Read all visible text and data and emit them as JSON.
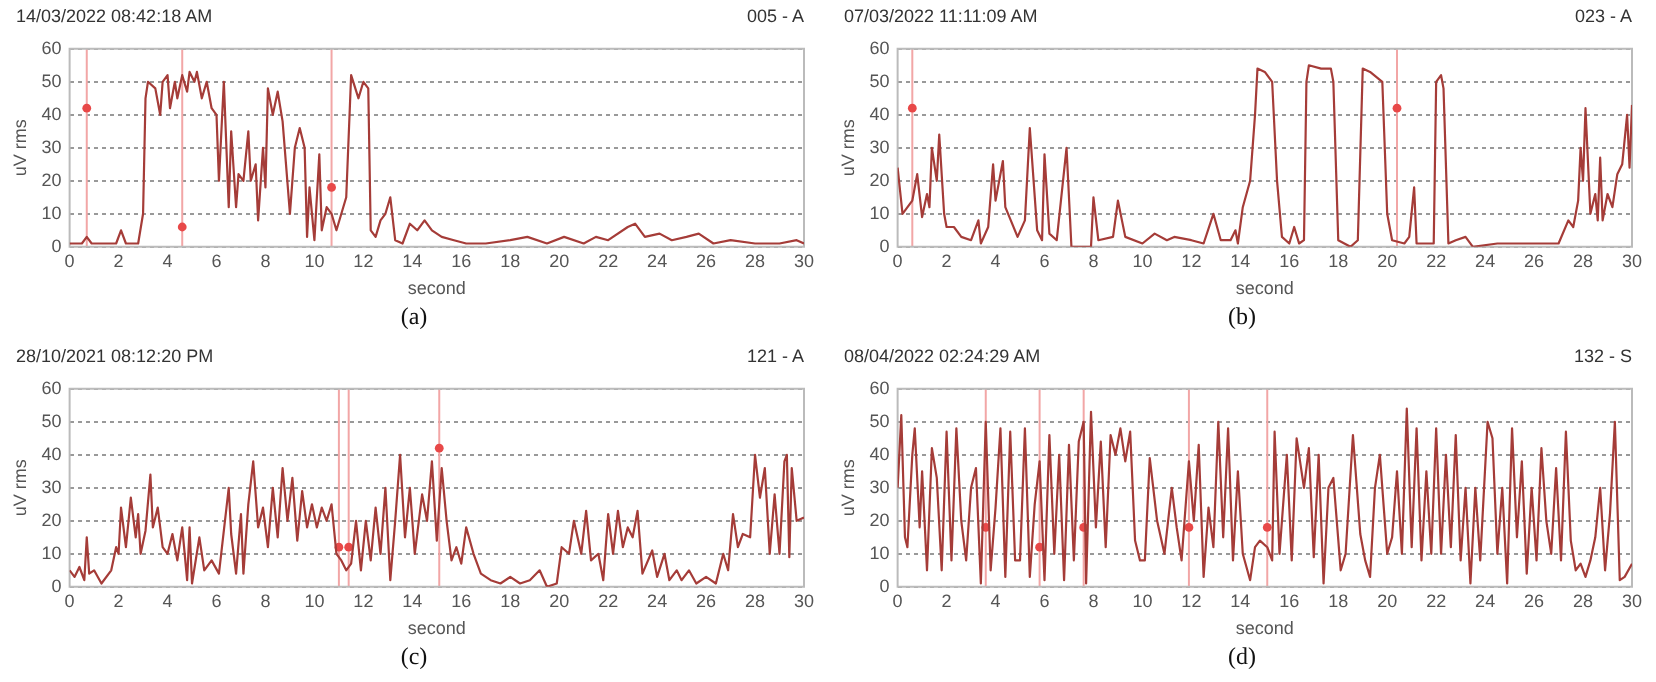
{
  "chart_data": [
    {
      "type": "line",
      "title": "14/03/2022 08:42:18 AM",
      "subtitle": "005 - A",
      "xlabel": "second",
      "ylabel": "uV rms",
      "annotations": [
        "(a)"
      ],
      "xlim": [
        0,
        30
      ],
      "ylim": [
        0,
        60
      ],
      "xticks": [
        0,
        2,
        4,
        6,
        8,
        10,
        12,
        14,
        16,
        18,
        20,
        22,
        24,
        26,
        28,
        30
      ],
      "yticks": [
        0,
        10,
        20,
        30,
        40,
        50,
        60
      ],
      "grid": "y",
      "legend": false,
      "line_style": "solid",
      "series": [
        {
          "type": "line",
          "color": "#a53c38",
          "marker": "none",
          "x": [
            0,
            0.5,
            0.7,
            0.9,
            1.5,
            1.9,
            2.1,
            2.3,
            2.8,
            3.0,
            3.1,
            3.2,
            3.5,
            3.7,
            3.8,
            4.0,
            4.1,
            4.3,
            4.4,
            4.6,
            4.8,
            4.9,
            5.1,
            5.2,
            5.4,
            5.6,
            5.8,
            6.0,
            6.1,
            6.3,
            6.5,
            6.6,
            6.8,
            6.9,
            7.1,
            7.3,
            7.4,
            7.6,
            7.7,
            7.9,
            8.0,
            8.1,
            8.3,
            8.5,
            8.7,
            9.0,
            9.2,
            9.4,
            9.6,
            9.7,
            9.8,
            9.9,
            10.0,
            10.2,
            10.3,
            10.5,
            10.7,
            10.9,
            11.1,
            11.3,
            11.5,
            11.8,
            12.0,
            12.2,
            12.3,
            12.5,
            12.7,
            12.9,
            13.1,
            13.3,
            13.6,
            13.9,
            14.2,
            14.5,
            14.8,
            15.2,
            15.7,
            16.2,
            17,
            18,
            18.7,
            19.5,
            20.2,
            21,
            21.5,
            22,
            22.8,
            23.1,
            23.5,
            24.1,
            24.6,
            25.2,
            25.7,
            26.3,
            27,
            28,
            29,
            29.7,
            30
          ],
          "values": [
            1,
            1,
            3,
            1,
            1,
            1,
            5,
            1,
            1,
            10,
            45,
            50,
            48,
            40,
            50,
            52,
            42,
            50,
            45,
            52,
            47,
            53,
            50,
            53,
            45,
            50,
            42,
            40,
            20,
            50,
            12,
            35,
            12,
            22,
            20,
            35,
            20,
            25,
            8,
            30,
            18,
            48,
            40,
            47,
            38,
            10,
            30,
            36,
            30,
            3,
            18,
            10,
            2,
            28,
            5,
            12,
            10,
            5,
            10,
            15,
            52,
            45,
            50,
            48,
            5,
            3,
            8,
            10,
            15,
            2,
            1,
            7,
            5,
            8,
            5,
            3,
            2,
            1,
            1,
            2,
            3,
            1,
            3,
            1,
            3,
            2,
            6,
            7,
            3,
            4,
            2,
            3,
            4,
            1,
            2,
            1,
            1,
            2,
            1
          ]
        },
        {
          "type": "scatter",
          "color": "#e84848",
          "marker": "circle",
          "x": [
            0.7,
            4.6,
            10.7
          ],
          "values": [
            42,
            6,
            18
          ]
        }
      ],
      "ref_lines": [
        {
          "axis": "x",
          "value": 0.7,
          "color": "#f2a6a6"
        },
        {
          "axis": "x",
          "value": 4.6,
          "color": "#f2a6a6"
        },
        {
          "axis": "x",
          "value": 10.7,
          "color": "#f2a6a6"
        }
      ]
    },
    {
      "type": "line",
      "title": "07/03/2022 11:11:09 AM",
      "subtitle": "023 - A",
      "xlabel": "second",
      "ylabel": "uV rms",
      "annotations": [
        "(b)"
      ],
      "xlim": [
        0,
        30
      ],
      "ylim": [
        0,
        60
      ],
      "xticks": [
        0,
        2,
        4,
        6,
        8,
        10,
        12,
        14,
        16,
        18,
        20,
        22,
        24,
        26,
        28,
        30
      ],
      "yticks": [
        0,
        10,
        20,
        30,
        40,
        50,
        60
      ],
      "grid": "y",
      "legend": false,
      "line_style": "solid",
      "series": [
        {
          "type": "line",
          "color": "#a53c38",
          "marker": "none",
          "x": [
            0,
            0.2,
            0.6,
            0.8,
            1.0,
            1.2,
            1.3,
            1.4,
            1.6,
            1.7,
            1.9,
            2.0,
            2.3,
            2.6,
            3.0,
            3.3,
            3.4,
            3.7,
            3.9,
            4.0,
            4.3,
            4.4,
            4.9,
            5.2,
            5.4,
            5.7,
            5.9,
            6.0,
            6.2,
            6.5,
            6.9,
            7.1,
            7.9,
            8.0,
            8.2,
            8.8,
            9.0,
            9.3,
            10.0,
            10.5,
            11.0,
            11.3,
            12.0,
            12.5,
            12.9,
            13.2,
            13.6,
            13.8,
            13.9,
            14.1,
            14.4,
            14.6,
            14.7,
            15.0,
            15.3,
            15.5,
            15.7,
            16.0,
            16.2,
            16.4,
            16.6,
            16.7,
            16.8,
            17.3,
            17.7,
            17.8,
            18.0,
            18.5,
            18.8,
            19.0,
            19.3,
            19.8,
            20.0,
            20.2,
            20.7,
            20.9,
            21.1,
            21.2,
            21.9,
            22.0,
            22.2,
            22.3,
            22.5,
            22.8,
            23.2,
            23.5,
            24.5,
            25.5,
            26.5,
            27.0,
            27.4,
            27.6,
            27.8,
            27.9,
            28.0,
            28.1,
            28.3,
            28.5,
            28.6,
            28.7,
            28.8,
            29.0,
            29.2,
            29.4,
            29.6,
            29.8,
            29.9,
            30
          ],
          "values": [
            24,
            10,
            14,
            22,
            9,
            16,
            12,
            30,
            20,
            34,
            10,
            6,
            6,
            3,
            2,
            8,
            1,
            6,
            25,
            14,
            26,
            12,
            3,
            8,
            36,
            5,
            2,
            28,
            4,
            2,
            30,
            0,
            0,
            15,
            2,
            3,
            14,
            3,
            1,
            4,
            2,
            3,
            2,
            1,
            10,
            2,
            2,
            5,
            1,
            12,
            20,
            40,
            54,
            53,
            50,
            20,
            3,
            1,
            6,
            1,
            2,
            50,
            55,
            54,
            54,
            50,
            2,
            0,
            2,
            54,
            53,
            50,
            10,
            2,
            1,
            3,
            18,
            1,
            1,
            50,
            52,
            48,
            1,
            2,
            3,
            0,
            1,
            1,
            1,
            1,
            8,
            6,
            14,
            30,
            20,
            42,
            10,
            16,
            8,
            27,
            8,
            16,
            12,
            22,
            25,
            40,
            24,
            43
          ]
        },
        {
          "type": "scatter",
          "color": "#e84848",
          "marker": "circle",
          "x": [
            0.6,
            20.4
          ],
          "values": [
            42,
            42
          ]
        }
      ],
      "ref_lines": [
        {
          "axis": "x",
          "value": 0.6,
          "color": "#f2a6a6"
        },
        {
          "axis": "x",
          "value": 20.4,
          "color": "#f2a6a6"
        }
      ]
    },
    {
      "type": "line",
      "title": "28/10/2021 08:12:20 PM",
      "subtitle": "121 - A",
      "xlabel": "second",
      "ylabel": "uV rms",
      "annotations": [
        "(c)"
      ],
      "xlim": [
        0,
        30
      ],
      "ylim": [
        0,
        60
      ],
      "xticks": [
        0,
        2,
        4,
        6,
        8,
        10,
        12,
        14,
        16,
        18,
        20,
        22,
        24,
        26,
        28,
        30
      ],
      "yticks": [
        0,
        10,
        20,
        30,
        40,
        50,
        60
      ],
      "grid": "y",
      "legend": false,
      "line_style": "solid",
      "series": [
        {
          "type": "line",
          "color": "#a53c38",
          "marker": "none",
          "x": [
            0,
            0.2,
            0.4,
            0.6,
            0.7,
            0.8,
            1.0,
            1.3,
            1.7,
            1.9,
            2.0,
            2.1,
            2.3,
            2.5,
            2.7,
            2.8,
            2.9,
            3.1,
            3.3,
            3.4,
            3.6,
            3.8,
            4.0,
            4.2,
            4.4,
            4.6,
            4.8,
            4.9,
            5.0,
            5.3,
            5.5,
            5.8,
            6.1,
            6.3,
            6.5,
            6.6,
            6.8,
            7.0,
            7.1,
            7.3,
            7.5,
            7.7,
            7.9,
            8.1,
            8.3,
            8.5,
            8.7,
            8.9,
            9.1,
            9.3,
            9.5,
            9.7,
            9.9,
            10.1,
            10.3,
            10.5,
            10.7,
            10.9,
            11.1,
            11.3,
            11.5,
            11.7,
            11.9,
            12.1,
            12.3,
            12.5,
            12.7,
            12.9,
            13.1,
            13.3,
            13.5,
            13.7,
            13.9,
            14.1,
            14.4,
            14.6,
            14.8,
            15.0,
            15.2,
            15.4,
            15.6,
            15.8,
            16.0,
            16.2,
            16.5,
            16.8,
            17.2,
            17.6,
            18.0,
            18.4,
            18.8,
            19.2,
            19.5,
            19.9,
            20.1,
            20.4,
            20.6,
            20.9,
            21.1,
            21.3,
            21.6,
            21.8,
            22.0,
            22.2,
            22.4,
            22.6,
            22.8,
            23.0,
            23.2,
            23.4,
            23.8,
            24.0,
            24.3,
            24.5,
            24.8,
            25.0,
            25.3,
            25.6,
            26.0,
            26.4,
            26.7,
            26.9,
            27.1,
            27.3,
            27.5,
            27.8,
            28.0,
            28.2,
            28.4,
            28.6,
            28.8,
            29.0,
            29.2,
            29.3,
            29.4,
            29.5,
            29.7,
            30
          ],
          "values": [
            5,
            3,
            6,
            2,
            15,
            4,
            5,
            1,
            5,
            12,
            10,
            24,
            12,
            27,
            15,
            22,
            10,
            17,
            34,
            18,
            24,
            12,
            10,
            16,
            8,
            18,
            2,
            18,
            1,
            15,
            5,
            8,
            4,
            17,
            30,
            16,
            4,
            22,
            4,
            25,
            38,
            18,
            24,
            12,
            30,
            15,
            36,
            20,
            33,
            14,
            29,
            18,
            25,
            18,
            24,
            20,
            25,
            10,
            8,
            5,
            7,
            20,
            5,
            20,
            8,
            24,
            10,
            30,
            2,
            20,
            40,
            15,
            30,
            10,
            28,
            20,
            38,
            14,
            36,
            20,
            8,
            12,
            7,
            18,
            10,
            4,
            2,
            1,
            3,
            1,
            2,
            5,
            0,
            1,
            12,
            10,
            20,
            10,
            23,
            8,
            10,
            2,
            22,
            10,
            23,
            12,
            18,
            15,
            23,
            4,
            11,
            3,
            10,
            2,
            5,
            2,
            5,
            1,
            3,
            1,
            10,
            5,
            22,
            12,
            16,
            15,
            40,
            27,
            36,
            10,
            28,
            10,
            38,
            40,
            9,
            36,
            20,
            21
          ]
        },
        {
          "type": "scatter",
          "color": "#e84848",
          "marker": "circle",
          "x": [
            11,
            11.4,
            15.1
          ],
          "values": [
            12,
            12,
            42
          ]
        }
      ],
      "ref_lines": [
        {
          "axis": "x",
          "value": 11,
          "color": "#f2a6a6"
        },
        {
          "axis": "x",
          "value": 11.4,
          "color": "#f2a6a6"
        },
        {
          "axis": "x",
          "value": 15.1,
          "color": "#f2a6a6"
        }
      ]
    },
    {
      "type": "line",
      "title": "08/04/2022 02:24:29 AM",
      "subtitle": "132 - S",
      "xlabel": "second",
      "ylabel": "uV rms",
      "annotations": [
        "(d)"
      ],
      "xlim": [
        0,
        30
      ],
      "ylim": [
        0,
        60
      ],
      "xticks": [
        0,
        2,
        4,
        6,
        8,
        10,
        12,
        14,
        16,
        18,
        20,
        22,
        24,
        26,
        28,
        30
      ],
      "yticks": [
        0,
        10,
        20,
        30,
        40,
        50,
        60
      ],
      "grid": "y",
      "legend": false,
      "line_style": "solid",
      "series": [
        {
          "type": "line",
          "color": "#a53c38",
          "marker": "none",
          "x": [
            0,
            0.15,
            0.3,
            0.4,
            0.6,
            0.7,
            0.9,
            1.0,
            1.2,
            1.4,
            1.6,
            1.8,
            2.0,
            2.2,
            2.4,
            2.6,
            2.8,
            3.0,
            3.2,
            3.4,
            3.6,
            3.8,
            4.0,
            4.2,
            4.4,
            4.6,
            4.8,
            5.0,
            5.2,
            5.4,
            5.6,
            5.8,
            6.0,
            6.2,
            6.4,
            6.6,
            6.8,
            7.0,
            7.2,
            7.4,
            7.6,
            7.7,
            7.9,
            8.1,
            8.3,
            8.5,
            8.7,
            8.9,
            9.1,
            9.3,
            9.5,
            9.7,
            9.9,
            10.1,
            10.3,
            10.6,
            10.9,
            11.2,
            11.4,
            11.6,
            11.9,
            12.1,
            12.3,
            12.5,
            12.7,
            12.9,
            13.1,
            13.3,
            13.5,
            13.7,
            13.9,
            14.1,
            14.4,
            14.6,
            14.8,
            15.1,
            15.3,
            15.4,
            15.6,
            15.9,
            16.1,
            16.3,
            16.6,
            16.8,
            17.0,
            17.2,
            17.4,
            17.6,
            17.8,
            18.1,
            18.3,
            18.6,
            18.9,
            19.1,
            19.3,
            19.5,
            19.7,
            20.0,
            20.2,
            20.4,
            20.6,
            20.8,
            21.0,
            21.2,
            21.4,
            21.6,
            21.8,
            22.0,
            22.2,
            22.4,
            22.6,
            22.8,
            23.0,
            23.2,
            23.4,
            23.6,
            23.8,
            24.1,
            24.3,
            24.5,
            24.7,
            24.9,
            25.1,
            25.3,
            25.5,
            25.7,
            25.9,
            26.1,
            26.3,
            26.5,
            26.7,
            26.9,
            27.1,
            27.3,
            27.5,
            27.7,
            27.9,
            28.1,
            28.3,
            28.5,
            28.7,
            28.9,
            29.1,
            29.3,
            29.5,
            29.7,
            30
          ],
          "values": [
            30,
            52,
            15,
            12,
            40,
            48,
            18,
            35,
            5,
            42,
            33,
            5,
            47,
            8,
            48,
            20,
            8,
            30,
            36,
            1,
            50,
            5,
            24,
            48,
            3,
            47,
            8,
            8,
            48,
            3,
            25,
            38,
            2,
            46,
            10,
            40,
            2,
            43,
            8,
            44,
            50,
            1,
            53,
            18,
            44,
            12,
            46,
            40,
            48,
            38,
            47,
            14,
            8,
            8,
            39,
            20,
            10,
            30,
            18,
            8,
            38,
            20,
            43,
            3,
            24,
            12,
            50,
            15,
            48,
            8,
            35,
            10,
            2,
            12,
            14,
            12,
            8,
            47,
            10,
            40,
            8,
            45,
            30,
            42,
            9,
            40,
            1,
            30,
            33,
            5,
            10,
            46,
            16,
            8,
            3,
            30,
            40,
            10,
            15,
            35,
            10,
            54,
            12,
            48,
            8,
            35,
            10,
            48,
            10,
            40,
            12,
            46,
            8,
            30,
            1,
            30,
            8,
            50,
            45,
            10,
            30,
            1,
            48,
            15,
            38,
            4,
            30,
            8,
            42,
            20,
            10,
            36,
            8,
            47,
            14,
            5,
            7,
            3,
            8,
            15,
            30,
            5,
            22,
            50,
            2,
            3,
            7
          ]
        },
        {
          "type": "scatter",
          "color": "#e84848",
          "marker": "circle",
          "x": [
            3.6,
            5.8,
            7.6,
            11.9,
            15.1
          ],
          "values": [
            18,
            12,
            18,
            18,
            18
          ]
        }
      ],
      "ref_lines": [
        {
          "axis": "x",
          "value": 3.6,
          "color": "#f2a6a6"
        },
        {
          "axis": "x",
          "value": 5.8,
          "color": "#f2a6a6"
        },
        {
          "axis": "x",
          "value": 7.6,
          "color": "#f2a6a6"
        },
        {
          "axis": "x",
          "value": 11.9,
          "color": "#f2a6a6"
        },
        {
          "axis": "x",
          "value": 15.1,
          "color": "#f2a6a6"
        }
      ]
    }
  ]
}
